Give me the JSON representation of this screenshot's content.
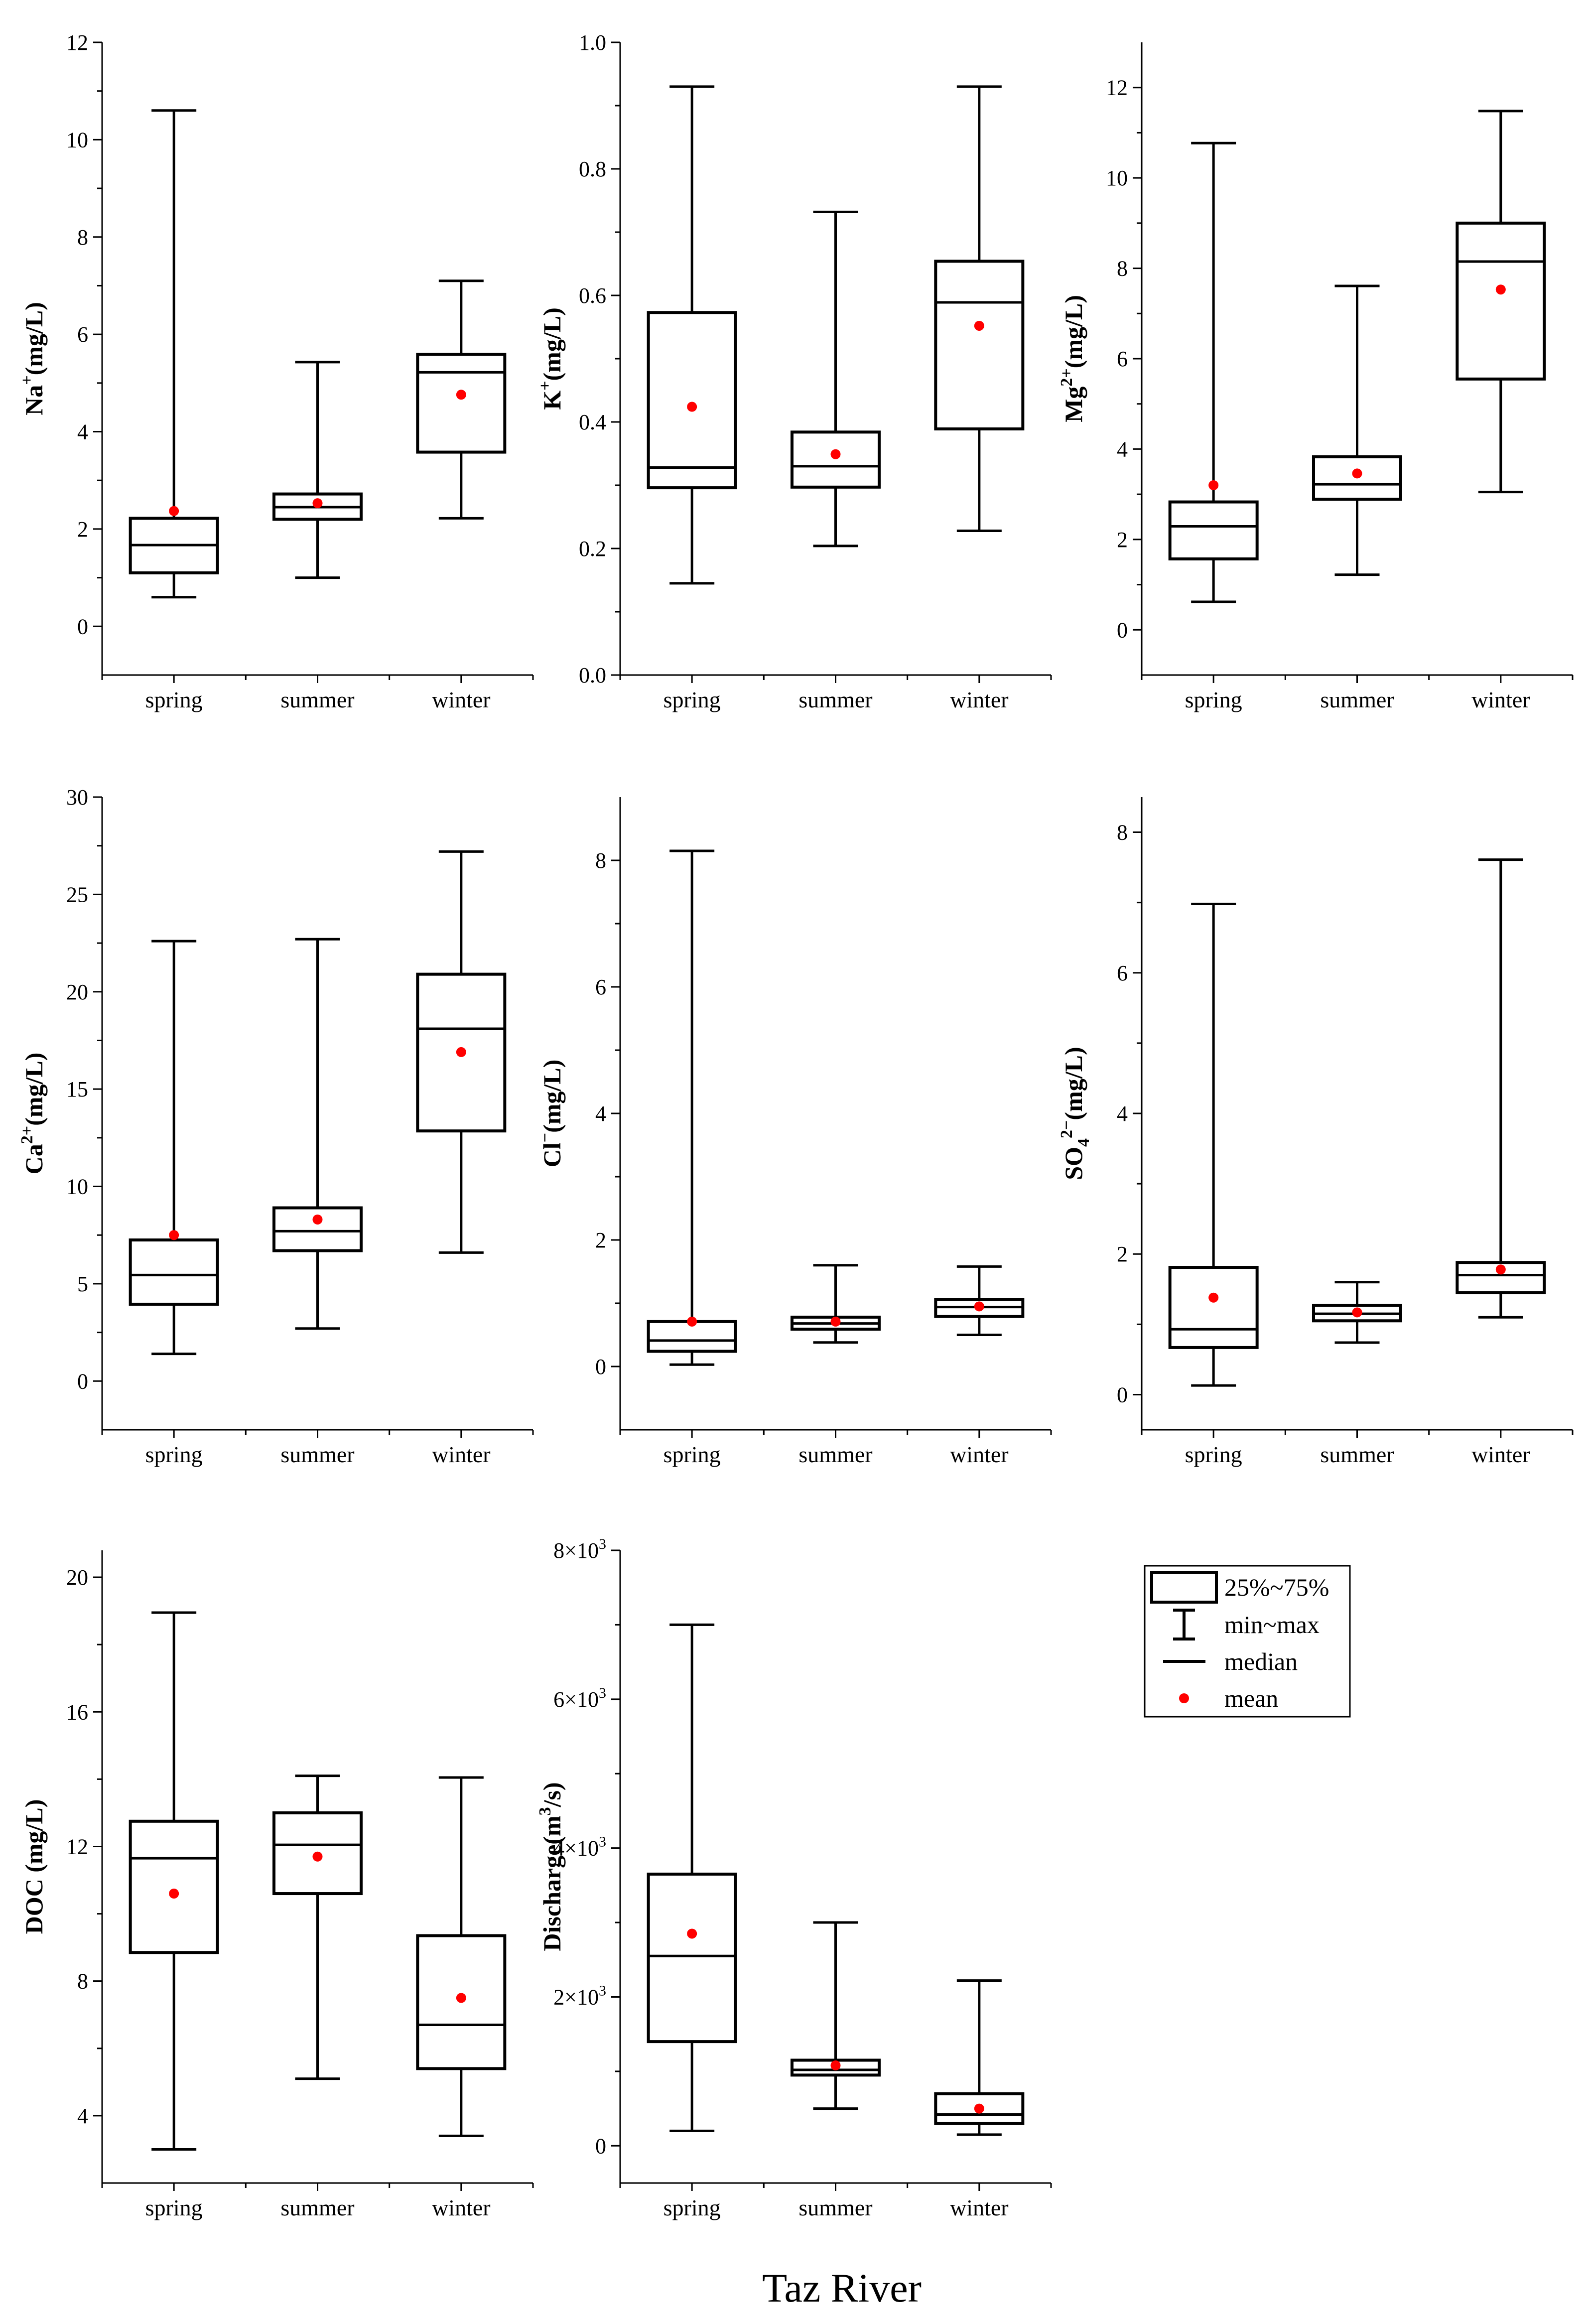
{
  "figure_title": "Taz River",
  "legend": {
    "box": "25%~75%",
    "whisker": "min~max",
    "median": "median",
    "mean": "mean"
  },
  "colors": {
    "mean": "#ff0000",
    "line": "#000000"
  },
  "chart_data": [
    {
      "type": "box",
      "ylabel": {
        "base": "Na",
        "sup": "+",
        "sub": "",
        "suffix": "(mg/L)"
      },
      "ylim": [
        -1,
        12
      ],
      "yticks": [
        0,
        2,
        4,
        6,
        8,
        10,
        12
      ],
      "tick_format": "plain",
      "categories": [
        "spring",
        "summer",
        "winter"
      ],
      "boxes": [
        {
          "min": 0.6,
          "q1": 1.1,
          "median": 1.67,
          "q3": 2.22,
          "max": 10.6,
          "mean": 2.37
        },
        {
          "min": 1.0,
          "q1": 2.2,
          "median": 2.45,
          "q3": 2.72,
          "max": 5.43,
          "mean": 2.53
        },
        {
          "min": 2.22,
          "q1": 3.58,
          "median": 5.22,
          "q3": 5.59,
          "max": 7.1,
          "mean": 4.76
        }
      ]
    },
    {
      "type": "box",
      "ylabel": {
        "base": "K",
        "sup": "+",
        "sub": "",
        "suffix": "(mg/L)"
      },
      "ylim": [
        0,
        1.0
      ],
      "yticks": [
        0,
        0.2,
        0.4,
        0.6,
        0.8,
        1.0
      ],
      "tick_format": "fixed1",
      "categories": [
        "spring",
        "summer",
        "winter"
      ],
      "boxes": [
        {
          "min": 0.145,
          "q1": 0.296,
          "median": 0.328,
          "q3": 0.573,
          "max": 0.93,
          "mean": 0.424
        },
        {
          "min": 0.204,
          "q1": 0.297,
          "median": 0.33,
          "q3": 0.384,
          "max": 0.732,
          "mean": 0.349
        },
        {
          "min": 0.228,
          "q1": 0.389,
          "median": 0.589,
          "q3": 0.654,
          "max": 0.93,
          "mean": 0.552
        }
      ]
    },
    {
      "type": "box",
      "ylabel": {
        "base": "Mg",
        "sup": "2+",
        "sub": "",
        "suffix": "(mg/L)"
      },
      "ylim": [
        -1,
        13
      ],
      "yticks": [
        0,
        2,
        4,
        6,
        8,
        10,
        12
      ],
      "tick_format": "plain",
      "categories": [
        "spring",
        "summer",
        "winter"
      ],
      "boxes": [
        {
          "min": 0.62,
          "q1": 1.57,
          "median": 2.29,
          "q3": 2.83,
          "max": 10.77,
          "mean": 3.2
        },
        {
          "min": 1.22,
          "q1": 2.89,
          "median": 3.22,
          "q3": 3.83,
          "max": 7.61,
          "mean": 3.46
        },
        {
          "min": 3.05,
          "q1": 5.55,
          "median": 8.15,
          "q3": 9.0,
          "max": 11.48,
          "mean": 7.53
        }
      ]
    },
    {
      "type": "box",
      "ylabel": {
        "base": "Ca",
        "sup": "2+",
        "sub": "",
        "suffix": "(mg/L)"
      },
      "ylim": [
        -2.5,
        30
      ],
      "yticks": [
        0,
        5,
        10,
        15,
        20,
        25,
        30
      ],
      "tick_format": "plain",
      "categories": [
        "spring",
        "summer",
        "winter"
      ],
      "boxes": [
        {
          "min": 1.4,
          "q1": 3.95,
          "median": 5.45,
          "q3": 7.25,
          "max": 22.6,
          "mean": 7.5
        },
        {
          "min": 2.7,
          "q1": 6.7,
          "median": 7.7,
          "q3": 8.9,
          "max": 22.7,
          "mean": 8.3
        },
        {
          "min": 6.6,
          "q1": 12.85,
          "median": 18.1,
          "q3": 20.9,
          "max": 27.2,
          "mean": 16.9
        }
      ]
    },
    {
      "type": "box",
      "ylabel": {
        "base": "Cl",
        "sup": "−",
        "sub": "",
        "suffix": "(mg/L)"
      },
      "ylim": [
        -1,
        9
      ],
      "yticks": [
        0,
        2,
        4,
        6,
        8
      ],
      "tick_format": "plain",
      "categories": [
        "spring",
        "summer",
        "winter"
      ],
      "boxes": [
        {
          "min": 0.03,
          "q1": 0.24,
          "median": 0.41,
          "q3": 0.71,
          "max": 8.15,
          "mean": 0.71
        },
        {
          "min": 0.38,
          "q1": 0.59,
          "median": 0.68,
          "q3": 0.78,
          "max": 1.6,
          "mean": 0.71
        },
        {
          "min": 0.5,
          "q1": 0.79,
          "median": 0.94,
          "q3": 1.06,
          "max": 1.58,
          "mean": 0.95
        }
      ]
    },
    {
      "type": "box",
      "ylabel": {
        "base": "SO",
        "sup": "2−",
        "sub": "4",
        "suffix": "(mg/L)"
      },
      "ylim": [
        -0.5,
        8.5
      ],
      "yticks": [
        0,
        2,
        4,
        6,
        8
      ],
      "tick_format": "plain",
      "categories": [
        "spring",
        "summer",
        "winter"
      ],
      "boxes": [
        {
          "min": 0.13,
          "q1": 0.67,
          "median": 0.93,
          "q3": 1.81,
          "max": 6.98,
          "mean": 1.38
        },
        {
          "min": 0.74,
          "q1": 1.05,
          "median": 1.15,
          "q3": 1.27,
          "max": 1.6,
          "mean": 1.17
        },
        {
          "min": 1.1,
          "q1": 1.45,
          "median": 1.7,
          "q3": 1.88,
          "max": 7.61,
          "mean": 1.78
        }
      ]
    },
    {
      "type": "box",
      "ylabel": {
        "base": "DOC  ",
        "sup": "",
        "sub": "",
        "suffix": "(mg/L)"
      },
      "ylim": [
        2,
        20.8
      ],
      "yticks": [
        4,
        8,
        12,
        16,
        20
      ],
      "tick_format": "plain",
      "categories": [
        "spring",
        "summer",
        "winter"
      ],
      "boxes": [
        {
          "min": 3.0,
          "q1": 8.85,
          "median": 11.65,
          "q3": 12.75,
          "max": 18.95,
          "mean": 10.6
        },
        {
          "min": 5.1,
          "q1": 10.6,
          "median": 12.05,
          "q3": 13.0,
          "max": 14.1,
          "mean": 11.7
        },
        {
          "min": 3.4,
          "q1": 5.4,
          "median": 6.7,
          "q3": 9.35,
          "max": 14.05,
          "mean": 7.5
        }
      ]
    },
    {
      "type": "box",
      "ylabel": {
        "base": "Discharge",
        "sup": "3",
        "sub": "",
        "prefix2": "(m",
        "suffix": "/s)"
      },
      "ylim": [
        -500,
        8000
      ],
      "yticks": [
        0,
        2000,
        4000,
        6000,
        8000
      ],
      "tick_format": "sci3",
      "categories": [
        "spring",
        "summer",
        "winter"
      ],
      "boxes": [
        {
          "min": 200,
          "q1": 1400,
          "median": 2550,
          "q3": 3650,
          "max": 7000,
          "mean": 2850
        },
        {
          "min": 500,
          "q1": 950,
          "median": 1020,
          "q3": 1150,
          "max": 3000,
          "mean": 1080
        },
        {
          "min": 150,
          "q1": 300,
          "median": 420,
          "q3": 700,
          "max": 2220,
          "mean": 500
        }
      ]
    }
  ]
}
